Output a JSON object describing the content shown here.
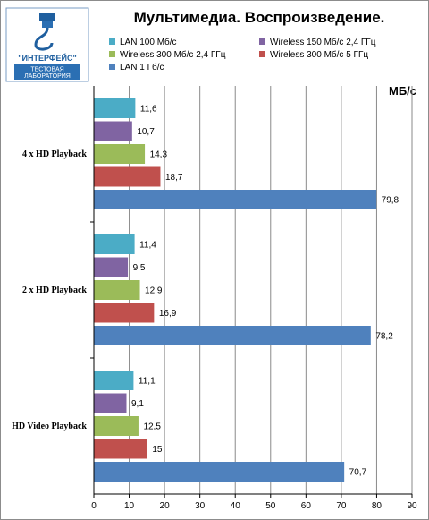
{
  "logo": {
    "brand": "\"ИНТЕРФЕЙС\"",
    "sub1": "ТЕСТОВАЯ",
    "sub2": "ЛАБОРАТОРИЯ",
    "icon": "usb-cable-icon",
    "brand_color": "#1f5f9f"
  },
  "chart_data": {
    "type": "bar",
    "orientation": "horizontal",
    "title": "Мультимедиа. Воспроизведение.",
    "unit_label": "МБ/с",
    "categories": [
      "4 x HD Playback",
      "2 x HD Playback",
      "HD Video Playback"
    ],
    "series": [
      {
        "name": "LAN 100 Мб/с",
        "color": "#4bacc6",
        "values": [
          11.6,
          11.4,
          11.1
        ]
      },
      {
        "name": "Wireless 150 Мб/с  2,4 ГГц",
        "color": "#8064a2",
        "values": [
          10.7,
          9.5,
          9.1
        ]
      },
      {
        "name": "Wireless 300 Мб/с  2,4 ГГц",
        "color": "#9bbb59",
        "values": [
          14.3,
          12.9,
          12.5
        ]
      },
      {
        "name": "Wireless 300 Мб/с  5 ГГц",
        "color": "#c0504d",
        "values": [
          18.7,
          16.9,
          15
        ]
      },
      {
        "name": "LAN 1 Гб/с",
        "color": "#4f81bd",
        "values": [
          79.8,
          78.2,
          70.7
        ]
      }
    ],
    "value_labels": [
      [
        "11,6",
        "11,4",
        "11,1"
      ],
      [
        "10,7",
        "9,5",
        "9,1"
      ],
      [
        "14,3",
        "12,9",
        "12,5"
      ],
      [
        "18,7",
        "16,9",
        "15"
      ],
      [
        "79,8",
        "78,2",
        "70,7"
      ]
    ],
    "xlim": [
      0,
      90
    ],
    "xticks": [
      "0",
      "10",
      "20",
      "30",
      "40",
      "50",
      "60",
      "70",
      "80",
      "90"
    ],
    "grid": true,
    "legend_position": "top"
  }
}
